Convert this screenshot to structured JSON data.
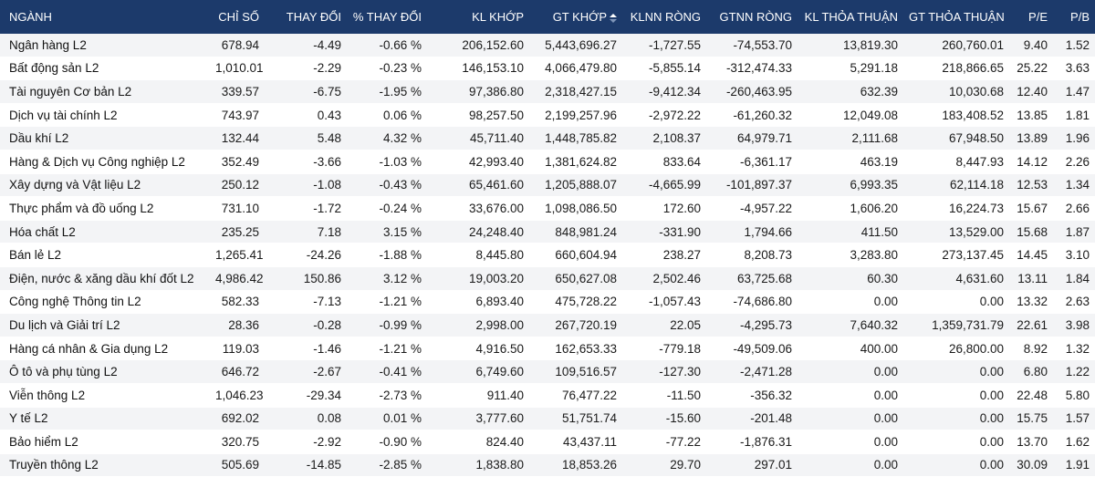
{
  "table": {
    "columns": [
      "NGÀNH",
      "CHỈ SỐ",
      "THAY ĐỔI",
      "% THAY ĐỔI",
      "KL KHỚP",
      "GT KHỚP",
      "KLNN RÒNG",
      "GTNN RÒNG",
      "KL THỎA THUẬN",
      "GT THỎA THUẬN",
      "P/E",
      "P/B"
    ],
    "sorted_column": "GT KHỚP",
    "sort_direction": "desc",
    "colors": {
      "down": "#e0424a",
      "up": "#2e9e4e",
      "header_bg": "#1c3a6b"
    },
    "rows": [
      {
        "name": "Ngân hàng L2",
        "index": "678.94",
        "change": "-4.49",
        "pct": "-0.66 %",
        "kl_khop": "206,152.60",
        "gt_khop": "5,443,696.27",
        "klnn": "-1,727.55",
        "gtnn": "-74,553.70",
        "kl_tt": "13,819.30",
        "gt_tt": "260,760.01",
        "pe": "9.40",
        "pb": "1.52",
        "trend": "down"
      },
      {
        "name": "Bất động sản L2",
        "index": "1,010.01",
        "change": "-2.29",
        "pct": "-0.23 %",
        "kl_khop": "146,153.10",
        "gt_khop": "4,066,479.80",
        "klnn": "-5,855.14",
        "gtnn": "-312,474.33",
        "kl_tt": "5,291.18",
        "gt_tt": "218,866.65",
        "pe": "25.22",
        "pb": "3.63",
        "trend": "down"
      },
      {
        "name": "Tài nguyên Cơ bản L2",
        "index": "339.57",
        "change": "-6.75",
        "pct": "-1.95 %",
        "kl_khop": "97,386.80",
        "gt_khop": "2,318,427.15",
        "klnn": "-9,412.34",
        "gtnn": "-260,463.95",
        "kl_tt": "632.39",
        "gt_tt": "10,030.68",
        "pe": "12.40",
        "pb": "1.47",
        "trend": "down"
      },
      {
        "name": "Dịch vụ tài chính L2",
        "index": "743.97",
        "change": "0.43",
        "pct": "0.06 %",
        "kl_khop": "98,257.50",
        "gt_khop": "2,199,257.96",
        "klnn": "-2,972.22",
        "gtnn": "-61,260.32",
        "kl_tt": "12,049.08",
        "gt_tt": "183,408.52",
        "pe": "13.85",
        "pb": "1.81",
        "trend": "up"
      },
      {
        "name": "Dầu khí L2",
        "index": "132.44",
        "change": "5.48",
        "pct": "4.32 %",
        "kl_khop": "45,711.40",
        "gt_khop": "1,448,785.82",
        "klnn": "2,108.37",
        "gtnn": "64,979.71",
        "kl_tt": "2,111.68",
        "gt_tt": "67,948.50",
        "pe": "13.89",
        "pb": "1.96",
        "trend": "up"
      },
      {
        "name": "Hàng & Dịch vụ Công nghiệp L2",
        "index": "352.49",
        "change": "-3.66",
        "pct": "-1.03 %",
        "kl_khop": "42,993.40",
        "gt_khop": "1,381,624.82",
        "klnn": "833.64",
        "gtnn": "-6,361.17",
        "kl_tt": "463.19",
        "gt_tt": "8,447.93",
        "pe": "14.12",
        "pb": "2.26",
        "trend": "down"
      },
      {
        "name": "Xây dựng và Vật liệu L2",
        "index": "250.12",
        "change": "-1.08",
        "pct": "-0.43 %",
        "kl_khop": "65,461.60",
        "gt_khop": "1,205,888.07",
        "klnn": "-4,665.99",
        "gtnn": "-101,897.37",
        "kl_tt": "6,993.35",
        "gt_tt": "62,114.18",
        "pe": "12.53",
        "pb": "1.34",
        "trend": "down"
      },
      {
        "name": "Thực phẩm và đồ uống L2",
        "index": "731.10",
        "change": "-1.72",
        "pct": "-0.24 %",
        "kl_khop": "33,676.00",
        "gt_khop": "1,098,086.50",
        "klnn": "172.60",
        "gtnn": "-4,957.22",
        "kl_tt": "1,606.20",
        "gt_tt": "16,224.73",
        "pe": "15.67",
        "pb": "2.66",
        "trend": "down"
      },
      {
        "name": "Hóa chất L2",
        "index": "235.25",
        "change": "7.18",
        "pct": "3.15 %",
        "kl_khop": "24,248.40",
        "gt_khop": "848,981.24",
        "klnn": "-331.90",
        "gtnn": "1,794.66",
        "kl_tt": "411.50",
        "gt_tt": "13,529.00",
        "pe": "15.68",
        "pb": "1.87",
        "trend": "up"
      },
      {
        "name": "Bán lẻ L2",
        "index": "1,265.41",
        "change": "-24.26",
        "pct": "-1.88 %",
        "kl_khop": "8,445.80",
        "gt_khop": "660,604.94",
        "klnn": "238.27",
        "gtnn": "8,208.73",
        "kl_tt": "3,283.80",
        "gt_tt": "273,137.45",
        "pe": "14.45",
        "pb": "3.10",
        "trend": "down"
      },
      {
        "name": "Điện, nước & xăng dầu khí đốt L2",
        "index": "4,986.42",
        "change": "150.86",
        "pct": "3.12 %",
        "kl_khop": "19,003.20",
        "gt_khop": "650,627.08",
        "klnn": "2,502.46",
        "gtnn": "63,725.68",
        "kl_tt": "60.30",
        "gt_tt": "4,631.60",
        "pe": "13.11",
        "pb": "1.84",
        "trend": "up"
      },
      {
        "name": "Công nghệ Thông tin L2",
        "index": "582.33",
        "change": "-7.13",
        "pct": "-1.21 %",
        "kl_khop": "6,893.40",
        "gt_khop": "475,728.22",
        "klnn": "-1,057.43",
        "gtnn": "-74,686.80",
        "kl_tt": "0.00",
        "gt_tt": "0.00",
        "pe": "13.32",
        "pb": "2.63",
        "trend": "down"
      },
      {
        "name": "Du lịch và Giải trí L2",
        "index": "28.36",
        "change": "-0.28",
        "pct": "-0.99 %",
        "kl_khop": "2,998.00",
        "gt_khop": "267,720.19",
        "klnn": "22.05",
        "gtnn": "-4,295.73",
        "kl_tt": "7,640.32",
        "gt_tt": "1,359,731.79",
        "pe": "22.61",
        "pb": "3.98",
        "trend": "down"
      },
      {
        "name": "Hàng cá nhân & Gia dụng L2",
        "index": "119.03",
        "change": "-1.46",
        "pct": "-1.21 %",
        "kl_khop": "4,916.50",
        "gt_khop": "162,653.33",
        "klnn": "-779.18",
        "gtnn": "-49,509.06",
        "kl_tt": "400.00",
        "gt_tt": "26,800.00",
        "pe": "8.92",
        "pb": "1.32",
        "trend": "down"
      },
      {
        "name": "Ô tô và phụ tùng L2",
        "index": "646.72",
        "change": "-2.67",
        "pct": "-0.41 %",
        "kl_khop": "6,749.60",
        "gt_khop": "109,516.57",
        "klnn": "-127.30",
        "gtnn": "-2,471.28",
        "kl_tt": "0.00",
        "gt_tt": "0.00",
        "pe": "6.80",
        "pb": "1.22",
        "trend": "down"
      },
      {
        "name": "Viễn thông L2",
        "index": "1,046.23",
        "change": "-29.34",
        "pct": "-2.73 %",
        "kl_khop": "911.40",
        "gt_khop": "76,477.22",
        "klnn": "-11.50",
        "gtnn": "-356.32",
        "kl_tt": "0.00",
        "gt_tt": "0.00",
        "pe": "22.48",
        "pb": "5.80",
        "trend": "down"
      },
      {
        "name": "Y tế L2",
        "index": "692.02",
        "change": "0.08",
        "pct": "0.01 %",
        "kl_khop": "3,777.60",
        "gt_khop": "51,751.74",
        "klnn": "-15.60",
        "gtnn": "-201.48",
        "kl_tt": "0.00",
        "gt_tt": "0.00",
        "pe": "15.75",
        "pb": "1.57",
        "trend": "up"
      },
      {
        "name": "Bảo hiểm L2",
        "index": "320.75",
        "change": "-2.92",
        "pct": "-0.90 %",
        "kl_khop": "824.40",
        "gt_khop": "43,437.11",
        "klnn": "-77.22",
        "gtnn": "-1,876.31",
        "kl_tt": "0.00",
        "gt_tt": "0.00",
        "pe": "13.70",
        "pb": "1.62",
        "trend": "down"
      },
      {
        "name": "Truyền thông L2",
        "index": "505.69",
        "change": "-14.85",
        "pct": "-2.85 %",
        "kl_khop": "1,838.80",
        "gt_khop": "18,853.26",
        "klnn": "29.70",
        "gtnn": "297.01",
        "kl_tt": "0.00",
        "gt_tt": "0.00",
        "pe": "30.09",
        "pb": "1.91",
        "trend": "down"
      }
    ]
  }
}
